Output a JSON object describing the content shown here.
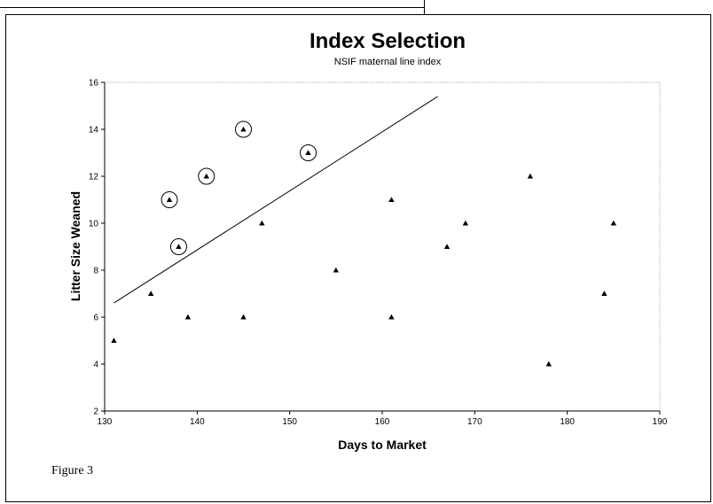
{
  "chart_data": {
    "type": "scatter",
    "title": "Index Selection",
    "subtitle": "NSIF maternal line index",
    "xlabel": "Days to Market",
    "ylabel": "Litter Size Weaned",
    "xlim": [
      130,
      190
    ],
    "ylim": [
      2,
      16
    ],
    "xticks": [
      130,
      140,
      150,
      160,
      170,
      180,
      190
    ],
    "yticks": [
      2,
      4,
      6,
      8,
      10,
      12,
      14,
      16
    ],
    "grid": false,
    "legend": "none",
    "marker": "triangle",
    "points": [
      {
        "x": 131,
        "y": 5,
        "selected": false
      },
      {
        "x": 135,
        "y": 7,
        "selected": false
      },
      {
        "x": 137,
        "y": 11,
        "selected": true
      },
      {
        "x": 138,
        "y": 9,
        "selected": true
      },
      {
        "x": 139,
        "y": 6,
        "selected": false
      },
      {
        "x": 141,
        "y": 12,
        "selected": true
      },
      {
        "x": 145,
        "y": 14,
        "selected": true
      },
      {
        "x": 145,
        "y": 6,
        "selected": false
      },
      {
        "x": 147,
        "y": 10,
        "selected": false
      },
      {
        "x": 152,
        "y": 13,
        "selected": true
      },
      {
        "x": 155,
        "y": 8,
        "selected": false
      },
      {
        "x": 161,
        "y": 11,
        "selected": false
      },
      {
        "x": 161,
        "y": 6,
        "selected": false
      },
      {
        "x": 167,
        "y": 9,
        "selected": false
      },
      {
        "x": 169,
        "y": 10,
        "selected": false
      },
      {
        "x": 176,
        "y": 12,
        "selected": false
      },
      {
        "x": 178,
        "y": 4,
        "selected": false
      },
      {
        "x": 184,
        "y": 7,
        "selected": false
      },
      {
        "x": 185,
        "y": 10,
        "selected": false
      }
    ],
    "selection_line": {
      "x": [
        131,
        166
      ],
      "y": [
        6.6,
        15.4
      ]
    },
    "colors": {
      "marks": "#000000",
      "background": "#ffffff"
    }
  },
  "caption": "Figure 3"
}
